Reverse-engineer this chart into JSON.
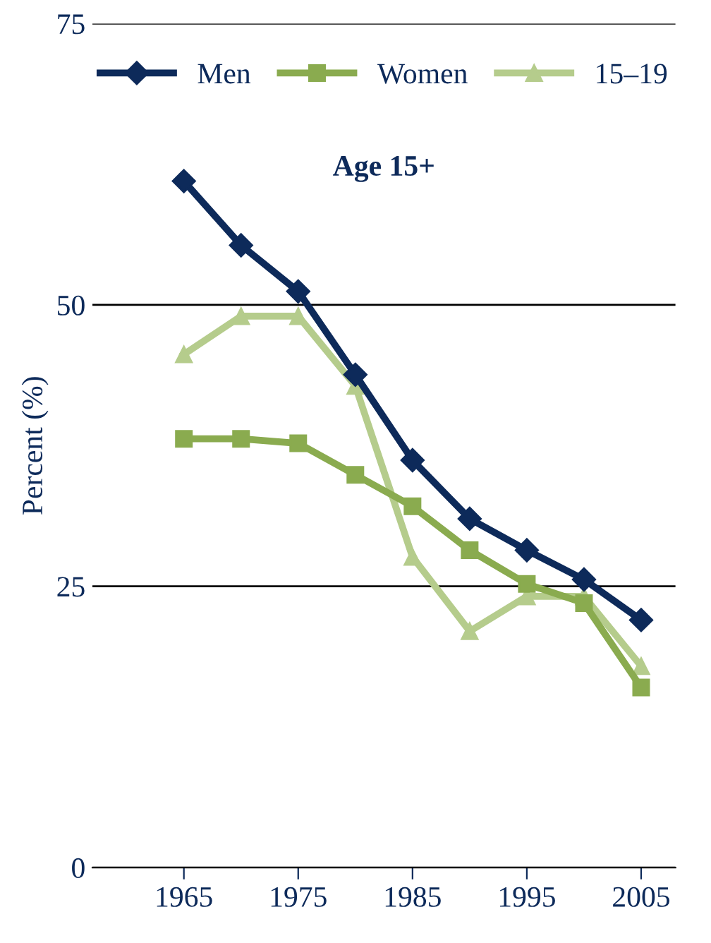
{
  "chart_data": {
    "type": "line",
    "title": "Age 15+",
    "ylabel": "Percent (%)",
    "x": [
      1965,
      1970,
      1975,
      1980,
      1985,
      1990,
      1995,
      2000,
      2005
    ],
    "series": [
      {
        "name": "Men",
        "color": "#0d2a5a",
        "marker": "diamond",
        "values": [
          61.0,
          55.3,
          51.2,
          43.8,
          36.2,
          31.0,
          28.2,
          25.6,
          22.0
        ]
      },
      {
        "name": "Women",
        "color": "#8aab4f",
        "marker": "square",
        "values": [
          38.1,
          38.1,
          37.7,
          34.9,
          32.1,
          28.2,
          25.2,
          23.5,
          16.0
        ]
      },
      {
        "name": "15–19",
        "color": "#b5cc8c",
        "marker": "triangle",
        "values": [
          45.6,
          49.0,
          49.0,
          42.8,
          27.6,
          21.0,
          24.1,
          24.1,
          17.9
        ]
      }
    ],
    "xlim": [
      1957,
      2008
    ],
    "xticks": [
      1965,
      1975,
      1985,
      1995,
      2005
    ],
    "ylim": [
      0,
      75
    ],
    "yticks": [
      0,
      25,
      50,
      75
    ],
    "grid": "y",
    "legend": "top"
  }
}
